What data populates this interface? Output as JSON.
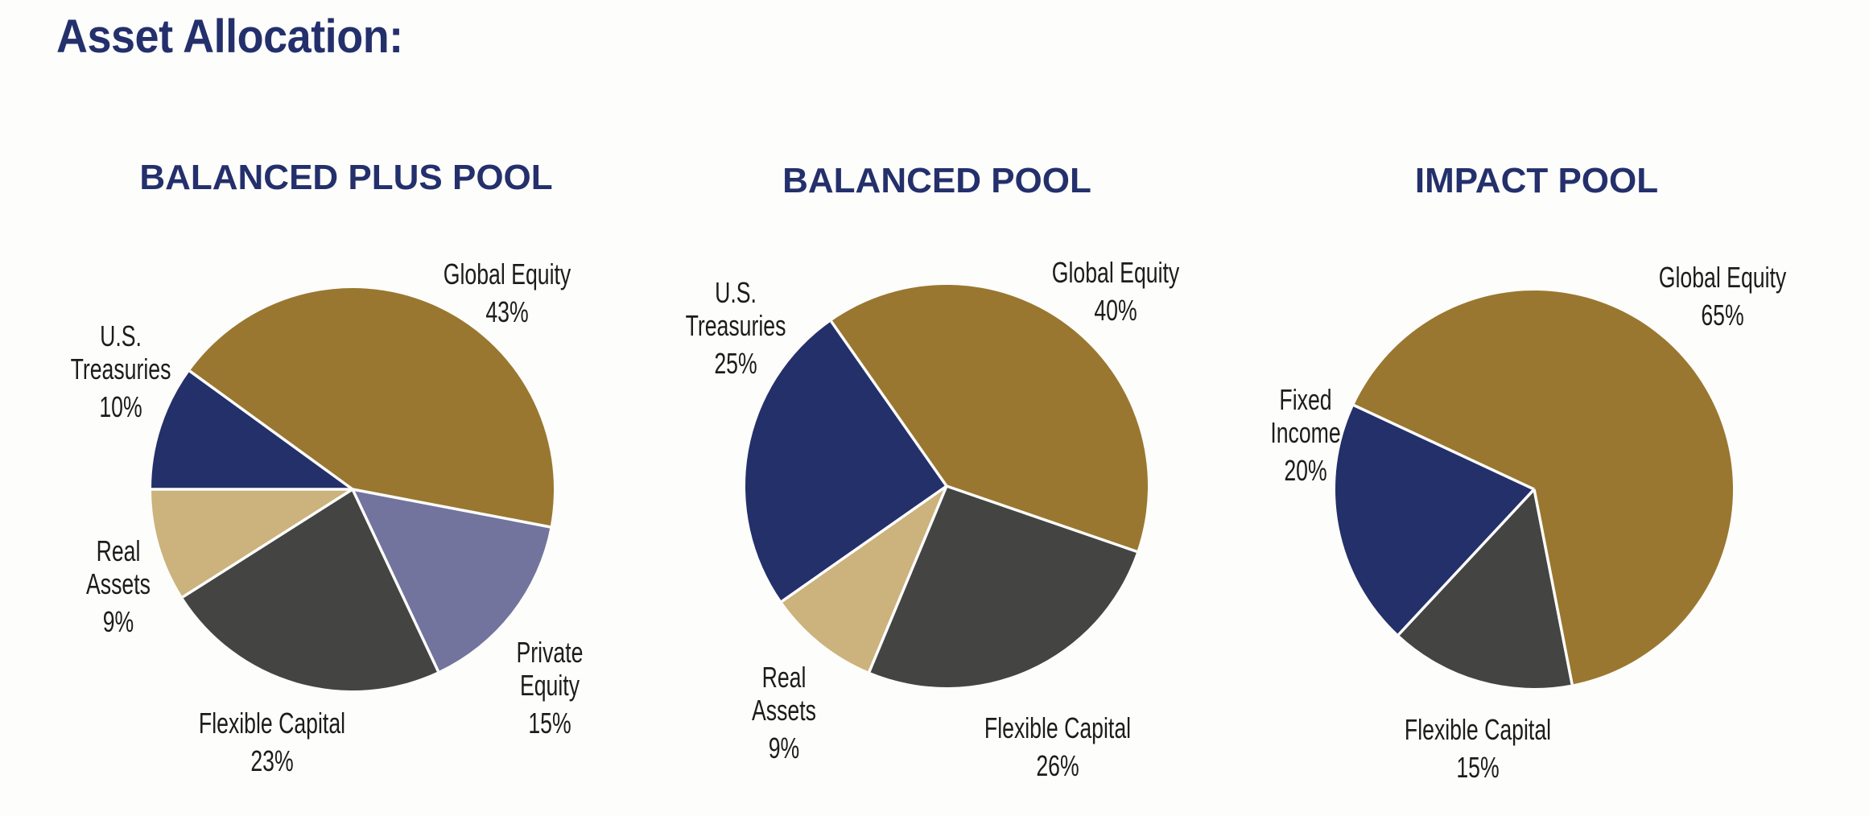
{
  "page": {
    "title": "Asset Allocation:",
    "background": "#fdfdfb",
    "title_color": "#24306c"
  },
  "colors": {
    "global_equity": "#9a7730",
    "us_treasuries": "#23306a",
    "fixed_income": "#23306a",
    "real_assets": "#ccb27c",
    "flexible_capital": "#444442",
    "private_equity": "#72749e",
    "separator": "#ffffff"
  },
  "pools": [
    {
      "title": "BALANCED PLUS POOL",
      "labels": [
        {
          "lines": [
            "Global Equity",
            "43%"
          ]
        },
        {
          "lines": [
            "U.S.",
            "Treasuries",
            "10%"
          ]
        },
        {
          "lines": [
            "Real",
            "Assets",
            "9%"
          ]
        },
        {
          "lines": [
            "Flexible Capital",
            "23%"
          ]
        },
        {
          "lines": [
            "Private",
            "Equity",
            "15%"
          ]
        }
      ]
    },
    {
      "title": "BALANCED POOL",
      "labels": [
        {
          "lines": [
            "U.S.",
            "Treasuries",
            "25%"
          ]
        },
        {
          "lines": [
            "Global Equity",
            "40%"
          ]
        },
        {
          "lines": [
            "Real",
            "Assets",
            "9%"
          ]
        },
        {
          "lines": [
            "Flexible Capital",
            "26%"
          ]
        }
      ]
    },
    {
      "title": "IMPACT POOL",
      "labels": [
        {
          "lines": [
            "Global Equity",
            "65%"
          ]
        },
        {
          "lines": [
            "Fixed",
            "Income",
            "20%"
          ]
        },
        {
          "lines": [
            "Flexible Capital",
            "15%"
          ]
        }
      ]
    }
  ],
  "chart_data": [
    {
      "type": "pie",
      "title": "BALANCED PLUS POOL",
      "categories": [
        "U.S. Treasuries",
        "Global Equity",
        "Private Equity",
        "Flexible Capital",
        "Real Assets"
      ],
      "values": [
        10,
        43,
        15,
        23,
        9
      ],
      "unit": "%",
      "colors": [
        "#23306a",
        "#9a7730",
        "#72749e",
        "#444442",
        "#ccb27c"
      ],
      "start_angle_deg_clockwise_from_top": 270,
      "legend": "none (direct labels)"
    },
    {
      "type": "pie",
      "title": "BALANCED POOL",
      "categories": [
        "U.S. Treasuries",
        "Global Equity",
        "Flexible Capital",
        "Real Assets"
      ],
      "values": [
        25,
        40,
        26,
        9
      ],
      "unit": "%",
      "colors": [
        "#23306a",
        "#9a7730",
        "#444442",
        "#ccb27c"
      ],
      "start_angle_deg_clockwise_from_top": 235,
      "legend": "none (direct labels)"
    },
    {
      "type": "pie",
      "title": "IMPACT POOL",
      "categories": [
        "Fixed Income",
        "Global Equity",
        "Flexible Capital"
      ],
      "values": [
        20,
        65,
        15
      ],
      "unit": "%",
      "colors": [
        "#23306a",
        "#9a7730",
        "#444442"
      ],
      "start_angle_deg_clockwise_from_top": 223,
      "legend": "none (direct labels)"
    }
  ]
}
